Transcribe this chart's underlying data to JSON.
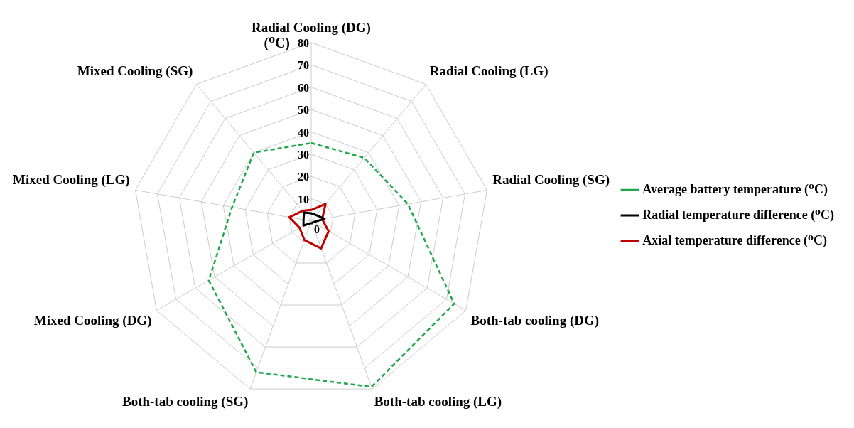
{
  "chart_data": {
    "type": "radar",
    "categories": [
      "Radial Cooling (DG)",
      "Radial Cooling (LG)",
      "Radial Cooling (SG)",
      "Both-tab cooling (DG)",
      "Both-tab cooling (LG)",
      "Both-tab cooling (SG)",
      "Mixed Cooling (DG)",
      "Mixed Cooling (LG)",
      "Mixed Cooling (SG)"
    ],
    "ylabel": "(⁰C)",
    "ylim": [
      0,
      80
    ],
    "yticks": [
      0,
      10,
      20,
      30,
      40,
      50,
      60,
      70,
      80
    ],
    "grid": true,
    "legend": "right",
    "marker": "none",
    "series": [
      {
        "name": "Average battery temperature (⁰C)",
        "color": "#1fa84a",
        "line_style": "dashed",
        "values": [
          35,
          37,
          44,
          74,
          79,
          72,
          53,
          36,
          40
        ]
      },
      {
        "name": "Radial temperature difference (⁰C)",
        "color": "#000000",
        "line_style": "solid",
        "values": [
          3.5,
          3.5,
          6,
          1,
          1,
          1,
          4,
          3.5,
          5
        ]
      },
      {
        "name": "Axial temperature difference (⁰C)",
        "color": "#c00000",
        "line_style": "solid",
        "values": [
          5,
          10,
          5,
          9,
          13,
          9,
          6,
          10,
          6
        ]
      }
    ]
  }
}
